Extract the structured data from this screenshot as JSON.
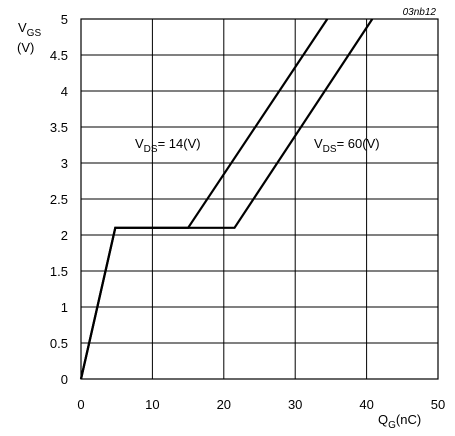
{
  "chart_data": {
    "type": "line",
    "figure_id": "03nb12",
    "y_axis": {
      "main": "V",
      "sub": "GS",
      "unit": "(V)",
      "min": 0,
      "max": 5,
      "step": 0.5,
      "tick_labels": [
        "0",
        "0.5",
        "1",
        "1.5",
        "2",
        "2.5",
        "3",
        "3.5",
        "4",
        "4.5",
        "5"
      ]
    },
    "x_axis": {
      "main": "Q",
      "sub": "G",
      "unit": "(nC)",
      "min": 0,
      "max": 50,
      "step": 10,
      "tick_labels": [
        "0",
        "10",
        "20",
        "30",
        "40",
        "50"
      ]
    },
    "grid": true,
    "series": [
      {
        "name": "V_DS = 14 V",
        "label": {
          "main": "V",
          "sub": "DS",
          "rest": "= 14(V)"
        },
        "points": [
          [
            0,
            0
          ],
          [
            4.8,
            2.1
          ],
          [
            15,
            2.1
          ],
          [
            34.5,
            5.0
          ]
        ]
      },
      {
        "name": "V_DS = 60 V",
        "label": {
          "main": "V",
          "sub": "DS",
          "rest": "= 60(V)"
        },
        "points": [
          [
            0,
            0
          ],
          [
            4.8,
            2.1
          ],
          [
            21.5,
            2.1
          ],
          [
            40.8,
            5.0
          ]
        ]
      }
    ]
  }
}
